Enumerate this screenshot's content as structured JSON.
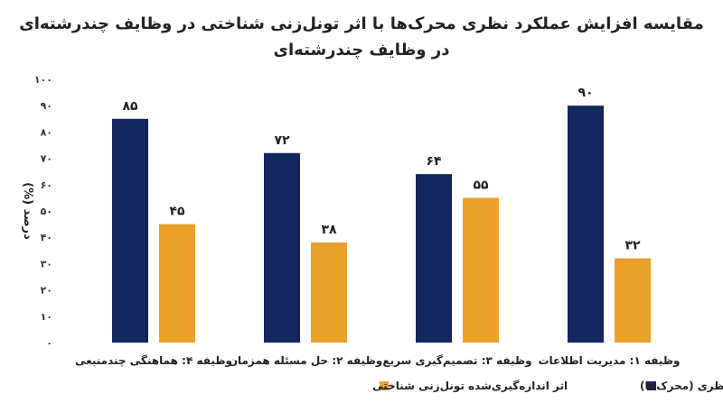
{
  "chart_data": {
    "type": "bar",
    "title_line1": "مقایسه افزایش عملکرد نظری محرک‌ها با اثر تونل‌زنی شناختی در وظایف چندرشته‌ای",
    "title_line2": "در وظایف چندرشته‌ای",
    "ylabel": "درصد (%)",
    "xlabel": "",
    "ylim": [
      0,
      100
    ],
    "yticks": [
      "۰",
      "۱۰",
      "۲۰",
      "۳۰",
      "۴۰",
      "۵۰",
      "۶۰",
      "۷۰",
      "۸۰",
      "۹۰",
      "۱۰۰"
    ],
    "categories": [
      "وظیفه ۱: مدیریت اطلاعات",
      "وظیفه ۳: تصمیم‌گیری سریع",
      "وظیفه ۲: حل مسئله همزمان",
      "وظیفه ۴: هماهنگی چندمنبعی"
    ],
    "series": [
      {
        "name": "افزایش عملکرد نظری (محرک‌ها)",
        "color": "#13275e",
        "values": [
          90,
          64,
          72,
          85
        ],
        "labels": [
          "۹۰",
          "۶۴",
          "۷۲",
          "۸۵"
        ]
      },
      {
        "name": "اثر اندازه‌گیری‌شده تونل‌زنی شناختی",
        "color": "#e8a12a",
        "values": [
          32,
          55,
          38,
          45
        ],
        "labels": [
          "۳۲",
          "۵۵",
          "۳۸",
          "۴۵"
        ]
      }
    ],
    "grid": false,
    "legend_position": "bottom"
  }
}
